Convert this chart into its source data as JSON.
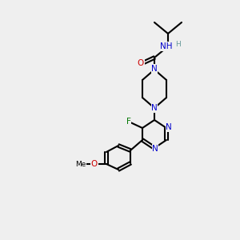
{
  "bg_color": "#efefef",
  "bond_color": "#000000",
  "bond_lw": 1.5,
  "atom_colors": {
    "N": "#0000cc",
    "O": "#cc0000",
    "F": "#007700",
    "H": "#669999",
    "C": "#000000"
  },
  "font_size": 7.5,
  "font_size_small": 6.5
}
